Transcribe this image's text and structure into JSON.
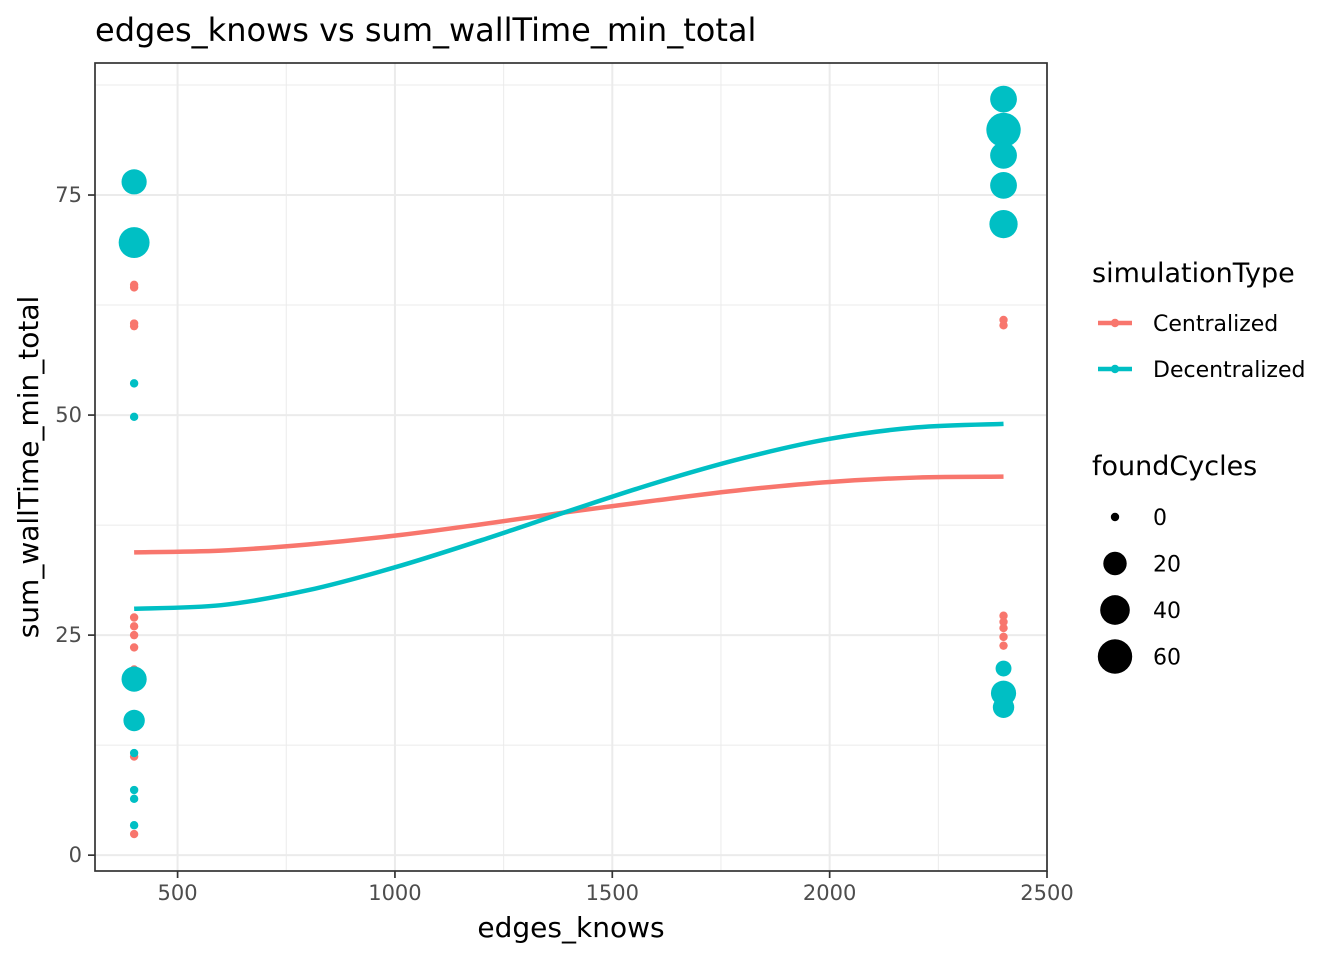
{
  "chart_data": {
    "type": "scatter",
    "title": "edges_knows  vs  sum_wallTime_min_total",
    "xlabel": "edges_knows",
    "ylabel": "sum_wallTime_min_total",
    "xlim": [
      310,
      2500
    ],
    "ylim": [
      -1.8,
      90
    ],
    "x_ticks": [
      500,
      1000,
      1500,
      2000,
      2500
    ],
    "y_ticks": [
      0,
      25,
      50,
      75
    ],
    "x_tick_labels": [
      "500",
      "1000",
      "1500",
      "2000",
      "2500"
    ],
    "y_tick_labels": [
      "0",
      "25",
      "50",
      "75"
    ],
    "grid": true,
    "legend": {
      "color_title": "simulationType",
      "color_entries": [
        {
          "label": "Centralized",
          "color": "#F8766D"
        },
        {
          "label": "Decentralized",
          "color": "#00BFC4"
        }
      ],
      "size_title": "foundCycles",
      "size_entries": [
        {
          "label": "0",
          "value": 0
        },
        {
          "label": "20",
          "value": 20
        },
        {
          "label": "40",
          "value": 40
        },
        {
          "label": "60",
          "value": 60
        }
      ],
      "position": "right"
    },
    "series": [
      {
        "name": "Centralized",
        "color": "#F8766D",
        "points": [
          {
            "x": 400,
            "y": 64.8,
            "size": 0
          },
          {
            "x": 400,
            "y": 64.5,
            "size": 0
          },
          {
            "x": 400,
            "y": 60.4,
            "size": 0
          },
          {
            "x": 400,
            "y": 60.1,
            "size": 0
          },
          {
            "x": 400,
            "y": 27.0,
            "size": 0
          },
          {
            "x": 400,
            "y": 26.0,
            "size": 0
          },
          {
            "x": 400,
            "y": 25.0,
            "size": 0
          },
          {
            "x": 400,
            "y": 23.6,
            "size": 0
          },
          {
            "x": 400,
            "y": 21.1,
            "size": 0
          },
          {
            "x": 400,
            "y": 11.2,
            "size": 0
          },
          {
            "x": 400,
            "y": 2.4,
            "size": 0
          },
          {
            "x": 2400,
            "y": 60.8,
            "size": 0
          },
          {
            "x": 2400,
            "y": 60.2,
            "size": 0
          },
          {
            "x": 2400,
            "y": 27.2,
            "size": 0
          },
          {
            "x": 2400,
            "y": 26.5,
            "size": 0
          },
          {
            "x": 2400,
            "y": 25.8,
            "size": 0
          },
          {
            "x": 2400,
            "y": 24.8,
            "size": 0
          },
          {
            "x": 2400,
            "y": 23.8,
            "size": 0
          }
        ],
        "smooth": {
          "x": [
            400,
            600,
            800,
            1000,
            1200,
            1400,
            1600,
            1800,
            2000,
            2200,
            2400
          ],
          "y": [
            34.4,
            34.6,
            35.3,
            36.3,
            37.6,
            39.0,
            40.3,
            41.5,
            42.4,
            42.9,
            43.0
          ]
        }
      },
      {
        "name": "Decentralized",
        "color": "#00BFC4",
        "points": [
          {
            "x": 400,
            "y": 76.5,
            "size": 25
          },
          {
            "x": 400,
            "y": 69.6,
            "size": 45
          },
          {
            "x": 400,
            "y": 53.6,
            "size": 0
          },
          {
            "x": 400,
            "y": 49.8,
            "size": 0
          },
          {
            "x": 400,
            "y": 20.0,
            "size": 25
          },
          {
            "x": 400,
            "y": 15.3,
            "size": 15
          },
          {
            "x": 400,
            "y": 11.6,
            "size": 0
          },
          {
            "x": 400,
            "y": 7.4,
            "size": 0
          },
          {
            "x": 400,
            "y": 6.4,
            "size": 0
          },
          {
            "x": 400,
            "y": 3.4,
            "size": 0
          },
          {
            "x": 2400,
            "y": 85.9,
            "size": 30
          },
          {
            "x": 2400,
            "y": 82.4,
            "size": 60
          },
          {
            "x": 2400,
            "y": 79.5,
            "size": 30
          },
          {
            "x": 2400,
            "y": 76.1,
            "size": 30
          },
          {
            "x": 2400,
            "y": 71.7,
            "size": 35
          },
          {
            "x": 2400,
            "y": 21.2,
            "size": 5
          },
          {
            "x": 2400,
            "y": 18.4,
            "size": 25
          },
          {
            "x": 2400,
            "y": 16.8,
            "size": 15
          }
        ],
        "smooth": {
          "x": [
            400,
            600,
            800,
            1000,
            1200,
            1400,
            1600,
            1800,
            2000,
            2200,
            2400
          ],
          "y": [
            28.0,
            28.4,
            30.1,
            32.7,
            35.8,
            39.1,
            42.3,
            45.1,
            47.3,
            48.6,
            49.0
          ]
        }
      }
    ]
  }
}
